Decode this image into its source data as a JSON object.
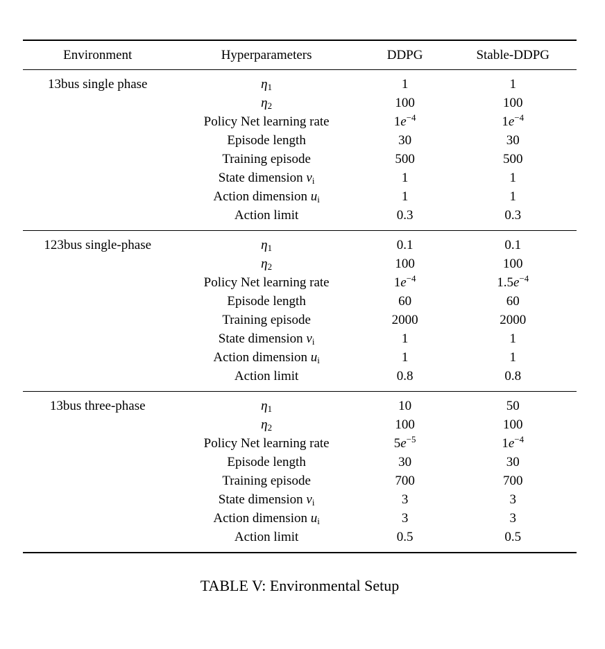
{
  "table": {
    "columns": [
      "Environment",
      "Hyperparameters",
      "DDPG",
      "Stable-DDPG"
    ],
    "caption": "TABLE V: Environmental Setup",
    "sections": [
      {
        "environment": "13bus single phase",
        "rows": [
          {
            "param": "η_1",
            "ddpg": "1",
            "stable_ddpg": "1"
          },
          {
            "param": "η_2",
            "ddpg": "100",
            "stable_ddpg": "100"
          },
          {
            "param": "Policy Net learning rate",
            "ddpg": "1e^{−4}",
            "stable_ddpg": "1e^{−4}"
          },
          {
            "param": "Episode length",
            "ddpg": "30",
            "stable_ddpg": "30"
          },
          {
            "param": "Training episode",
            "ddpg": "500",
            "stable_ddpg": "500"
          },
          {
            "param": "State dimension v_i",
            "ddpg": "1",
            "stable_ddpg": "1"
          },
          {
            "param": "Action dimension u_i",
            "ddpg": "1",
            "stable_ddpg": "1"
          },
          {
            "param": "Action limit",
            "ddpg": "0.3",
            "stable_ddpg": "0.3"
          }
        ]
      },
      {
        "environment": "123bus single-phase",
        "rows": [
          {
            "param": "η_1",
            "ddpg": "0.1",
            "stable_ddpg": "0.1"
          },
          {
            "param": "η_2",
            "ddpg": "100",
            "stable_ddpg": "100"
          },
          {
            "param": "Policy Net learning rate",
            "ddpg": "1e^{−4}",
            "stable_ddpg": "1.5e^{−4}"
          },
          {
            "param": "Episode length",
            "ddpg": "60",
            "stable_ddpg": "60"
          },
          {
            "param": "Training episode",
            "ddpg": "2000",
            "stable_ddpg": "2000"
          },
          {
            "param": "State dimension v_i",
            "ddpg": "1",
            "stable_ddpg": "1"
          },
          {
            "param": "Action dimension u_i",
            "ddpg": "1",
            "stable_ddpg": "1"
          },
          {
            "param": "Action limit",
            "ddpg": "0.8",
            "stable_ddpg": "0.8"
          }
        ]
      },
      {
        "environment": "13bus three-phase",
        "rows": [
          {
            "param": "η_1",
            "ddpg": "10",
            "stable_ddpg": "50"
          },
          {
            "param": "η_2",
            "ddpg": "100",
            "stable_ddpg": "100"
          },
          {
            "param": "Policy Net learning rate",
            "ddpg": "5e^{−5}",
            "stable_ddpg": "1e^{−4}"
          },
          {
            "param": "Episode length",
            "ddpg": "30",
            "stable_ddpg": "30"
          },
          {
            "param": "Training episode",
            "ddpg": "700",
            "stable_ddpg": "700"
          },
          {
            "param": "State dimension v_i",
            "ddpg": "3",
            "stable_ddpg": "3"
          },
          {
            "param": "Action dimension u_i",
            "ddpg": "3",
            "stable_ddpg": "3"
          },
          {
            "param": "Action limit",
            "ddpg": "0.5",
            "stable_ddpg": "0.5"
          }
        ]
      }
    ]
  }
}
